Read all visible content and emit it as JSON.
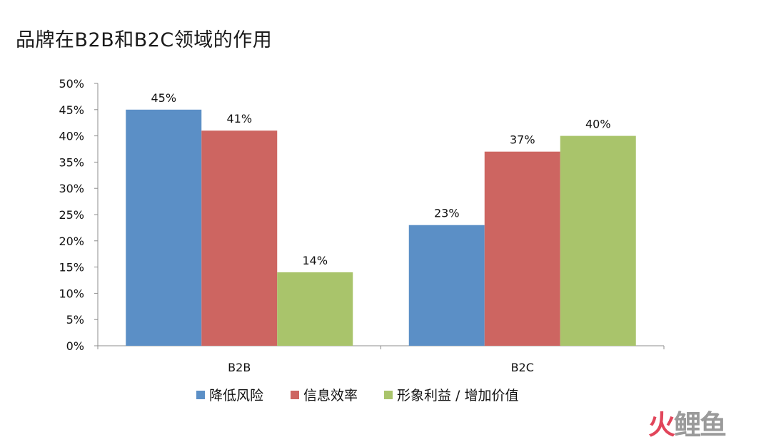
{
  "title": "品牌在B2B和B2C领域的作用",
  "watermark": [
    "火",
    "鲤",
    "鱼"
  ],
  "chart_data": {
    "type": "bar",
    "categories": [
      "B2B",
      "B2C"
    ],
    "series": [
      {
        "name": "降低风险",
        "values": [
          45,
          23
        ],
        "labels": [
          "45%",
          "23%"
        ],
        "color": "#5b8fc6"
      },
      {
        "name": "信息效率",
        "values": [
          41,
          37
        ],
        "labels": [
          "41%",
          "37%"
        ],
        "color": "#cd6561"
      },
      {
        "name": "形象利益 / 增加价值",
        "values": [
          14,
          40
        ],
        "labels": [
          "14%",
          "40%"
        ],
        "color": "#a9c46b"
      }
    ],
    "y_ticks": [
      "0%",
      "5%",
      "10%",
      "15%",
      "20%",
      "25%",
      "30%",
      "35%",
      "40%",
      "45%",
      "50%"
    ],
    "ylim": [
      0,
      50
    ],
    "grid": false,
    "legend": "bottom"
  }
}
